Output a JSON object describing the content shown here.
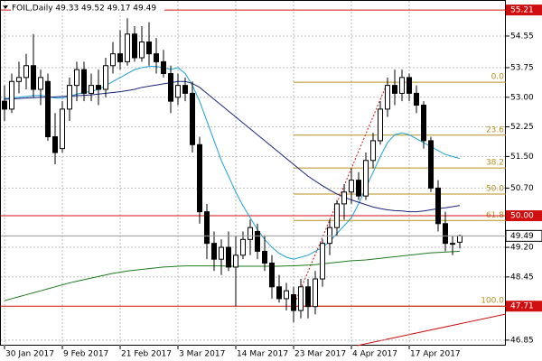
{
  "chart_data": {
    "type": "candlestick",
    "title": "FOIL,Daily  49.33 49.52 49.17 49.49",
    "categories": [
      "30 Jan 2017",
      null,
      null,
      null,
      null,
      null,
      null,
      null,
      "9 Feb 2017",
      null,
      null,
      null,
      null,
      null,
      null,
      null,
      "21 Feb 2017",
      null,
      null,
      null,
      null,
      null,
      null,
      null,
      "3 Mar 2017",
      null,
      null,
      null,
      null,
      null,
      null,
      null,
      "14 Mar 2017",
      null,
      null,
      null,
      null,
      null,
      null,
      null,
      "23 Mar 2017",
      null,
      null,
      null,
      null,
      null,
      null,
      null,
      "4 Apr 2017",
      null,
      null,
      null,
      null,
      null,
      null,
      null,
      "17 Apr 2017",
      null,
      null,
      null,
      null,
      null,
      null,
      null
    ],
    "open": [
      52.9,
      52.7,
      53.4,
      53.5,
      53.8,
      53.2,
      53.4,
      52.0,
      51.7,
      52.7,
      53.3,
      53.7,
      53.1,
      53.3,
      53.2,
      53.8,
      54.1,
      53.9,
      54.6,
      54.0,
      54.4,
      54.1,
      53.9,
      53.6,
      53.0,
      53.3,
      53.1,
      51.8,
      50.1,
      49.3,
      48.9,
      49.2,
      48.7,
      49.0,
      49.4,
      49.6,
      49.1,
      48.8,
      48.2,
      47.9,
      48.0,
      47.6,
      48.2,
      47.7,
      48.4,
      49.3,
      49.7,
      50.3,
      50.6,
      50.9,
      50.5,
      51.4,
      51.9,
      52.7,
      53.3,
      53.1,
      53.5,
      53.1,
      52.8,
      51.9,
      50.7,
      49.8,
      49.3,
      49.33
    ],
    "high": [
      53.3,
      53.6,
      53.9,
      54.1,
      54.6,
      53.7,
      53.6,
      52.6,
      52.9,
      53.5,
      53.9,
      53.9,
      53.6,
      53.7,
      54.0,
      54.4,
      54.7,
      55.0,
      54.8,
      54.8,
      54.9,
      54.5,
      54.2,
      53.8,
      53.6,
      53.5,
      53.4,
      52.0,
      50.3,
      49.6,
      49.4,
      49.6,
      49.5,
      49.6,
      49.9,
      49.8,
      49.5,
      49.0,
      48.5,
      48.3,
      48.2,
      48.4,
      48.4,
      48.6,
      49.4,
      49.9,
      50.4,
      50.8,
      51.2,
      51.1,
      51.6,
      52.1,
      52.9,
      53.5,
      53.7,
      53.7,
      53.6,
      53.3,
      52.9,
      52.0,
      50.9,
      50.1,
      49.5,
      49.52
    ],
    "low": [
      52.4,
      52.6,
      53.1,
      53.2,
      53.0,
      52.8,
      51.9,
      51.3,
      51.6,
      52.4,
      52.9,
      52.9,
      52.9,
      52.8,
      53.0,
      53.6,
      53.7,
      53.8,
      53.9,
      53.9,
      53.8,
      53.6,
      53.5,
      52.6,
      52.8,
      52.9,
      51.6,
      49.8,
      48.9,
      48.6,
      48.5,
      48.6,
      47.7,
      48.9,
      49.0,
      48.9,
      48.6,
      47.9,
      47.8,
      47.6,
      47.3,
      47.4,
      47.4,
      47.5,
      48.2,
      49.0,
      49.5,
      49.9,
      50.3,
      50.4,
      50.4,
      51.2,
      51.8,
      52.5,
      52.8,
      52.9,
      52.9,
      52.6,
      51.7,
      50.6,
      49.6,
      49.1,
      49.0,
      49.17
    ],
    "close": [
      52.7,
      53.4,
      53.5,
      53.8,
      53.2,
      53.5,
      52.0,
      51.6,
      52.7,
      53.3,
      53.7,
      53.1,
      53.3,
      53.2,
      53.8,
      54.1,
      53.9,
      54.6,
      54.0,
      54.4,
      54.1,
      53.9,
      53.6,
      52.9,
      53.3,
      53.1,
      51.8,
      50.1,
      49.3,
      48.9,
      49.2,
      48.7,
      49.0,
      49.4,
      49.7,
      49.1,
      48.8,
      48.2,
      47.9,
      48.1,
      47.6,
      48.2,
      47.7,
      48.4,
      49.3,
      49.7,
      50.3,
      50.6,
      50.9,
      50.5,
      51.4,
      51.9,
      52.7,
      53.3,
      53.1,
      53.5,
      53.1,
      52.8,
      51.9,
      50.7,
      49.8,
      49.3,
      49.3,
      49.49
    ],
    "moving_averages": [
      {
        "color": "#1ba1d8",
        "values": [
          52.97,
          52.98,
          53.0,
          53.02,
          53.04,
          53.05,
          53.02,
          52.98,
          52.98,
          53.02,
          53.08,
          53.12,
          53.15,
          53.2,
          53.3,
          53.4,
          53.5,
          53.6,
          53.7,
          53.75,
          53.78,
          53.78,
          53.75,
          53.7,
          53.75,
          53.6,
          53.3,
          52.9,
          52.4,
          51.9,
          51.4,
          51.0,
          50.6,
          50.25,
          49.95,
          49.65,
          49.4,
          49.2,
          49.05,
          48.95,
          48.9,
          48.95,
          49.0,
          49.1,
          49.2,
          49.35,
          49.55,
          49.75,
          49.95,
          50.3,
          50.7,
          51.1,
          51.5,
          51.85,
          52.05,
          52.1,
          52.05,
          51.95,
          51.85,
          51.75,
          51.65,
          51.55,
          51.5,
          51.45
        ]
      },
      {
        "color": "#1a237e",
        "values": [
          52.95,
          52.96,
          52.97,
          52.98,
          52.99,
          53.0,
          53.0,
          53.01,
          53.02,
          53.03,
          53.04,
          53.05,
          53.06,
          53.08,
          53.1,
          53.12,
          53.14,
          53.17,
          53.2,
          53.25,
          53.28,
          53.31,
          53.34,
          53.37,
          53.4,
          53.4,
          53.35,
          53.25,
          53.1,
          52.95,
          52.8,
          52.65,
          52.5,
          52.35,
          52.2,
          52.05,
          51.9,
          51.75,
          51.6,
          51.45,
          51.3,
          51.15,
          51.0,
          50.88,
          50.76,
          50.65,
          50.55,
          50.47,
          50.4,
          50.34,
          50.28,
          50.22,
          50.18,
          50.15,
          50.13,
          50.12,
          50.1,
          50.1,
          50.12,
          50.15,
          50.18,
          50.2,
          50.23,
          50.26
        ]
      },
      {
        "color": "#1e7b1e",
        "values": [
          47.85,
          47.9,
          47.95,
          48.0,
          48.05,
          48.1,
          48.15,
          48.2,
          48.25,
          48.3,
          48.34,
          48.38,
          48.42,
          48.46,
          48.5,
          48.54,
          48.57,
          48.6,
          48.62,
          48.64,
          48.66,
          48.68,
          48.7,
          48.71,
          48.72,
          48.73,
          48.73,
          48.73,
          48.73,
          48.73,
          48.73,
          48.72,
          48.72,
          48.72,
          48.72,
          48.72,
          48.72,
          48.72,
          48.72,
          48.73,
          48.73,
          48.74,
          48.75,
          48.76,
          48.78,
          48.8,
          48.82,
          48.84,
          48.86,
          48.87,
          48.88,
          48.9,
          48.92,
          48.94,
          48.96,
          48.98,
          49.0,
          49.02,
          49.04,
          49.06,
          49.07,
          49.08,
          49.09,
          49.1
        ]
      }
    ],
    "fib_levels": [
      {
        "value": 53.38,
        "label": "0.0"
      },
      {
        "value": 52.04,
        "label": "23.6"
      },
      {
        "value": 51.21,
        "label": "38.2"
      },
      {
        "value": 50.55,
        "label": "50.0"
      },
      {
        "value": 49.88,
        "label": "61.8"
      },
      {
        "value": 47.71,
        "label": "100.0"
      }
    ],
    "fib_color": "#b8901c",
    "levels": [
      {
        "value": 55.21,
        "label": "55.21"
      },
      {
        "value": 50.0,
        "label": "50.00"
      },
      {
        "value": 47.71,
        "label": "47.71"
      }
    ],
    "level_color": "#d01010",
    "current_price": {
      "value": 49.49,
      "label": "49.49"
    },
    "ylim": [
      46.71,
      55.44
    ],
    "yticks": [
      {
        "value": 54.55,
        "label": "54.55"
      },
      {
        "value": 53.75,
        "label": "53.75"
      },
      {
        "value": 53.0,
        "label": "53.00"
      },
      {
        "value": 52.25,
        "label": "52.25"
      },
      {
        "value": 51.5,
        "label": "51.50"
      },
      {
        "value": 50.7,
        "label": "50.70"
      },
      {
        "value": 49.2,
        "label": "49.20"
      },
      {
        "value": 48.45,
        "label": "48.45"
      },
      {
        "value": 46.85,
        "label": "46.85"
      }
    ],
    "grid": true
  }
}
